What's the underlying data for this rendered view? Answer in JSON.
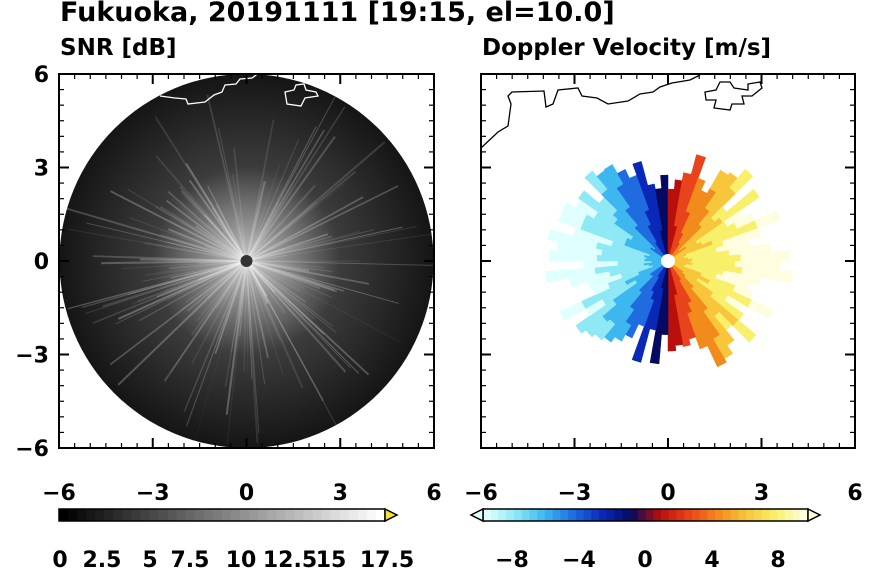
{
  "figure": {
    "title": "Fukuoka, 20191111 [19:15, el=10.0]"
  },
  "chart_data": [
    {
      "type": "heatmap",
      "title": "SNR [dB]",
      "xlim": [
        -6,
        6
      ],
      "ylim": [
        -6,
        6
      ],
      "xticks": [
        -6,
        -3,
        0,
        3,
        6
      ],
      "yticks": [
        -6,
        -3,
        0,
        3,
        6
      ],
      "x_tick_labels": [
        "−6",
        "−3",
        "0",
        "3",
        "6"
      ],
      "y_tick_labels": [
        "−6",
        "−3",
        "0",
        "3",
        "6"
      ],
      "colorbar": {
        "range": [
          0,
          18
        ],
        "extend": "max",
        "tick_labels": [
          "0",
          "2.5",
          "5",
          "7.5",
          "10",
          "12.5",
          "15",
          "17.5"
        ],
        "colors": [
          "#000000",
          "#ffffff"
        ]
      },
      "grid": false
    },
    {
      "type": "heatmap",
      "title": "Doppler Velocity [m/s]",
      "xlim": [
        -6,
        6
      ],
      "ylim": [
        -6,
        6
      ],
      "xticks": [
        -6,
        -3,
        0,
        3,
        6
      ],
      "yticks": [
        -6,
        -3,
        0,
        3,
        6
      ],
      "x_tick_labels": [
        "−6",
        "−3",
        "0",
        "3",
        "6"
      ],
      "colorbar": {
        "range": [
          -10,
          10
        ],
        "extend": "both",
        "tick_labels": [
          "−8",
          "−4",
          "0",
          "4",
          "8"
        ],
        "colors": [
          "#e0ffff",
          "#8ee8f5",
          "#3db7f0",
          "#1f6ce0",
          "#0a28b8",
          "#040a60",
          "#b80f0a",
          "#e8431a",
          "#f28a1c",
          "#f7c63a",
          "#f8f06a",
          "#fffde0"
        ]
      },
      "grid": false
    }
  ]
}
